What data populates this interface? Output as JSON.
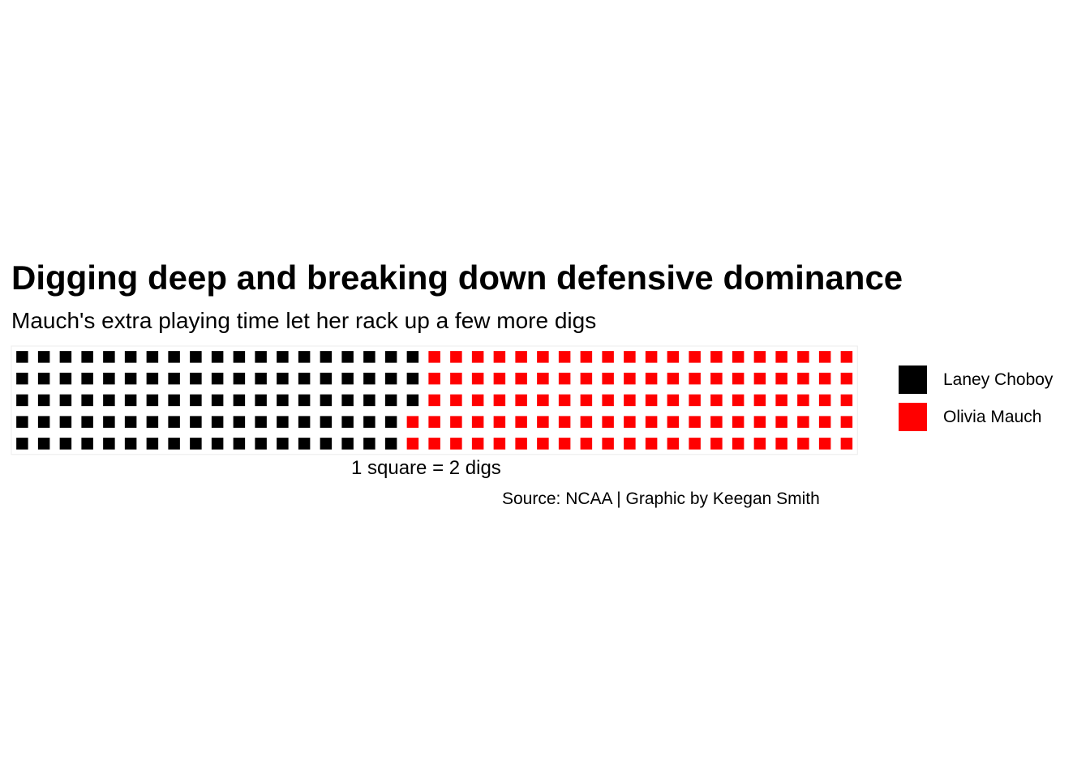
{
  "chart_data": {
    "type": "waffle",
    "title": "Digging deep and breaking down defensive dominance",
    "subtitle": "Mauch's extra playing time let her rack up a few more digs",
    "xlabel": "1 square = 2 digs",
    "caption": "Source: NCAA | Graphic by Keegan Smith",
    "unit": "1 square = 2 digs",
    "rows": 5,
    "fill_order": "column-major",
    "legend_position": "right",
    "series": [
      {
        "name": "Laney Choboy",
        "squares": 93,
        "digs": 186,
        "color": "#000000"
      },
      {
        "name": "Olivia Mauch",
        "squares": 102,
        "digs": 204,
        "color": "#ff0000"
      }
    ]
  }
}
